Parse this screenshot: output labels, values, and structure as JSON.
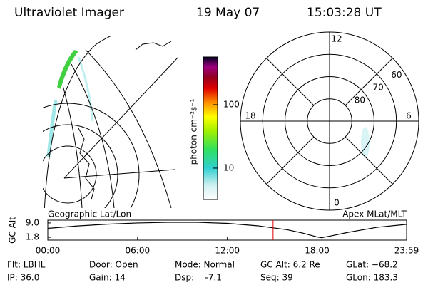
{
  "header": {
    "title": "Ultraviolet Imager",
    "date": "19 May 07",
    "time": "15:03:28 UT"
  },
  "left_panel": {
    "label": "Geographic Lat/Lon"
  },
  "right_panel": {
    "label": "Apex MLat/MLT",
    "hour_labels": [
      12,
      18,
      6,
      0
    ],
    "lat_ticks": [
      80,
      70,
      60
    ],
    "lat_lim": [
      90,
      50
    ]
  },
  "colorbar": {
    "label": "photon cm⁻²s⁻¹",
    "log": true,
    "lim": [
      3.2,
      565
    ],
    "ticks": [
      10,
      100
    ]
  },
  "chart_data": {
    "type": "line",
    "y_label": "GC Alt",
    "x": [
      0,
      2,
      4,
      6,
      8,
      10,
      12,
      14,
      16,
      17,
      18,
      18.3,
      19,
      20,
      22,
      23.98
    ],
    "values": [
      6.3,
      7.5,
      8.4,
      9.0,
      9.3,
      9.3,
      8.8,
      7.6,
      5.6,
      4.0,
      2.0,
      1.6,
      2.6,
      4.2,
      6.8,
      8.3
    ],
    "color": "#000000",
    "marker": 15.06,
    "marker_color": "#e00000",
    "xlim": [
      0,
      23.983
    ],
    "ylim": [
      0.4,
      10.4
    ],
    "xticks": [
      {
        "value": 0,
        "label": "00:00"
      },
      {
        "value": 6,
        "label": "06:00"
      },
      {
        "value": 12,
        "label": "12:00"
      },
      {
        "value": 18,
        "label": "18:00"
      },
      {
        "value": 23.983,
        "label": "23:59"
      }
    ],
    "yticks": [
      {
        "value": 9,
        "label": "9.0"
      },
      1.8
    ]
  },
  "footer": {
    "rows": [
      [
        "Flt: LBHL",
        "Door: Open",
        "Mode: Normal",
        "GC Alt: 6.2 Re",
        "GLat: −68.2"
      ],
      [
        "IP: 36.0",
        "Gain: 14",
        "Dsp:    -7.1",
        "Seq: 39",
        "GLon: 183.3"
      ]
    ]
  }
}
